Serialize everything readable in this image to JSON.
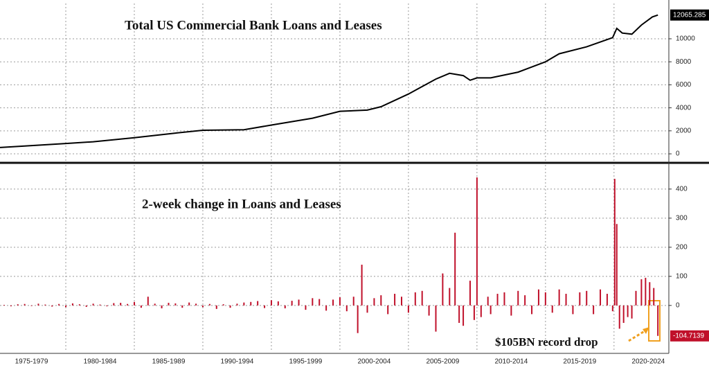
{
  "chart_data": [
    {
      "type": "line",
      "title": "Total US Commercial Bank Loans and Leases",
      "x": [
        1975.2,
        1977,
        1980,
        1982,
        1985,
        1988,
        1990,
        1993,
        1995,
        1998,
        2000,
        2002,
        2003,
        2005,
        2007,
        2008,
        2009,
        2009.5,
        2010,
        2011,
        2013,
        2015,
        2016,
        2018,
        2019.9,
        2020.2,
        2020.6,
        2021.3,
        2022,
        2022.8,
        2023.2
      ],
      "series": [
        {
          "color": "#000000",
          "values": [
            550,
            680,
            900,
            1050,
            1400,
            1800,
            2050,
            2100,
            2500,
            3100,
            3700,
            3800,
            4100,
            5200,
            6500,
            7000,
            6800,
            6400,
            6600,
            6600,
            7100,
            8000,
            8700,
            9300,
            10100,
            10900,
            10500,
            10400,
            11200,
            11900,
            12065.285
          ]
        }
      ],
      "xlim": [
        1975.2,
        2024.0
      ],
      "ylim": [
        -600,
        13070
      ],
      "yticks": [
        0,
        2000,
        4000,
        6000,
        8000,
        10000
      ],
      "grid": true
    },
    {
      "type": "bar",
      "title": "2-week change in Loans and Leases",
      "annotation": "$105BN record drop",
      "x": [
        1975.5,
        1976,
        1976.5,
        1977,
        1977.5,
        1978,
        1978.5,
        1979,
        1979.5,
        1980,
        1980.5,
        1981,
        1981.5,
        1982,
        1982.5,
        1983,
        1983.5,
        1984,
        1984.5,
        1985,
        1985.5,
        1986,
        1986.5,
        1987,
        1987.5,
        1988,
        1988.5,
        1989,
        1989.5,
        1990,
        1990.5,
        1991,
        1991.5,
        1992,
        1992.5,
        1993,
        1993.5,
        1994,
        1994.5,
        1995,
        1995.5,
        1996,
        1996.5,
        1997,
        1997.5,
        1998,
        1998.5,
        1999,
        1999.5,
        2000,
        2000.5,
        2001,
        2001.3,
        2001.6,
        2002,
        2002.5,
        2003,
        2003.5,
        2004,
        2004.5,
        2005,
        2005.5,
        2006,
        2006.5,
        2007,
        2007.5,
        2008,
        2008.4,
        2008.7,
        2009,
        2009.5,
        2009.8,
        2010,
        2010.3,
        2010.8,
        2011,
        2011.5,
        2012,
        2012.5,
        2013,
        2013.5,
        2014,
        2014.5,
        2015,
        2015.5,
        2016,
        2016.5,
        2017,
        2017.5,
        2018,
        2018.5,
        2019,
        2019.5,
        2019.9,
        2020.05,
        2020.2,
        2020.4,
        2020.7,
        2021,
        2021.3,
        2021.6,
        2022,
        2022.3,
        2022.6,
        2022.9,
        2023.2
      ],
      "values": [
        2,
        -3,
        4,
        5,
        -2,
        6,
        3,
        -4,
        5,
        -6,
        7,
        4,
        -5,
        6,
        3,
        -3,
        8,
        9,
        5,
        12,
        -8,
        30,
        6,
        -10,
        9,
        7,
        -8,
        10,
        6,
        -6,
        5,
        -12,
        4,
        -8,
        6,
        10,
        12,
        15,
        -9,
        18,
        14,
        -10,
        16,
        20,
        -15,
        25,
        22,
        -18,
        20,
        28,
        -20,
        30,
        -95,
        140,
        -25,
        25,
        35,
        -30,
        40,
        30,
        -25,
        45,
        50,
        -35,
        -90,
        110,
        60,
        250,
        -60,
        -70,
        85,
        -50,
        440,
        -40,
        30,
        -30,
        40,
        45,
        -35,
        50,
        35,
        -30,
        55,
        45,
        -25,
        55,
        40,
        -30,
        45,
        50,
        -30,
        55,
        40,
        -20,
        435,
        280,
        -80,
        -60,
        -40,
        -45,
        50,
        90,
        95,
        80,
        60,
        -104.7139
      ],
      "color": "#c0102a",
      "xlim": [
        1975.2,
        2024.0
      ],
      "ylim": [
        -160,
        483
      ],
      "yticks": [
        0,
        100,
        200,
        300,
        400
      ],
      "grid": true,
      "xgrid": [
        1980,
        1985,
        1990,
        1995,
        2000,
        2005,
        2010,
        2015,
        2020
      ],
      "xticks": [
        {
          "value": 1977.5,
          "label": "1975-1979"
        },
        {
          "value": 1982.5,
          "label": "1980-1984"
        },
        {
          "value": 1987.5,
          "label": "1985-1989"
        },
        {
          "value": 1992.5,
          "label": "1990-1994"
        },
        {
          "value": 1997.5,
          "label": "1995-1999"
        },
        {
          "value": 2002.5,
          "label": "2000-2004"
        },
        {
          "value": 2007.5,
          "label": "2005-2009"
        },
        {
          "value": 2012.5,
          "label": "2010-2014"
        },
        {
          "value": 2017.5,
          "label": "2015-2019"
        },
        {
          "value": 2022.5,
          "label": "2020-2024"
        }
      ]
    }
  ]
}
